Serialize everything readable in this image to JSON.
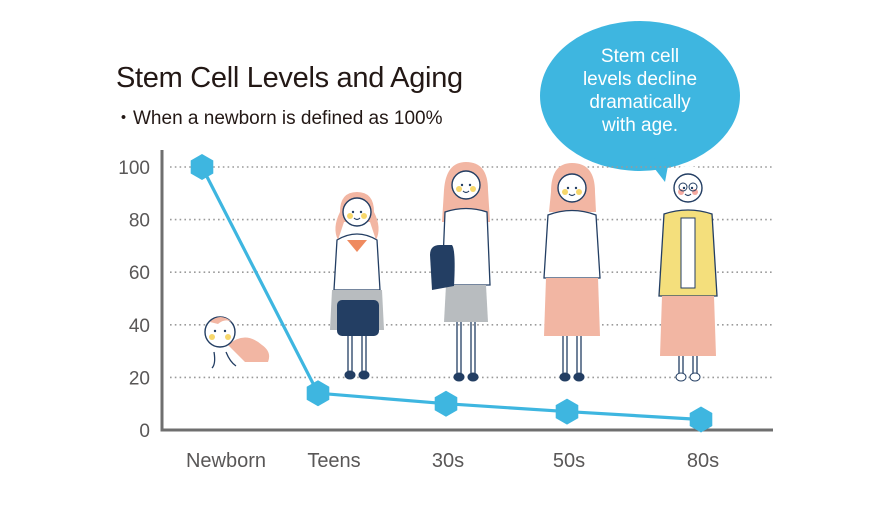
{
  "header": {
    "title": "Stem Cell Levels and Aging",
    "subtitle": "・When a newborn is defined as 100%"
  },
  "callout": {
    "text_lines": [
      "Stem cell",
      "levels decline",
      "dramatically",
      "with age."
    ]
  },
  "colors": {
    "line": "#3eb6e0",
    "axis": "#6f6f6f",
    "grid": "#9a9a9a",
    "skin_pink": "#f2b6a3",
    "navy": "#233e63",
    "yellow": "#f4df7c",
    "gray_skirt": "#b8bcbf"
  },
  "chart_data": {
    "type": "line",
    "title": "Stem Cell Levels and Aging",
    "subtitle": "When a newborn is defined as 100%",
    "categories": [
      "Newborn",
      "Teens",
      "30s",
      "50s",
      "80s"
    ],
    "series": [
      {
        "name": "Stem cell level (%)",
        "values": [
          100,
          14,
          10,
          7,
          4
        ],
        "marker": "hexagon"
      }
    ],
    "yticks": [
      "0",
      "20",
      "40",
      "60",
      "80",
      "100"
    ],
    "ylim": [
      0,
      100
    ],
    "xlabel": "",
    "ylabel": "",
    "grid": "horizontal dotted",
    "legend": "none",
    "annotation": "Stem cell levels decline dramatically with age.",
    "illustrations": [
      "baby",
      "teen girl in school uniform",
      "woman in 30s with shoulder bag",
      "woman in 50s",
      "elderly woman with glasses"
    ]
  }
}
